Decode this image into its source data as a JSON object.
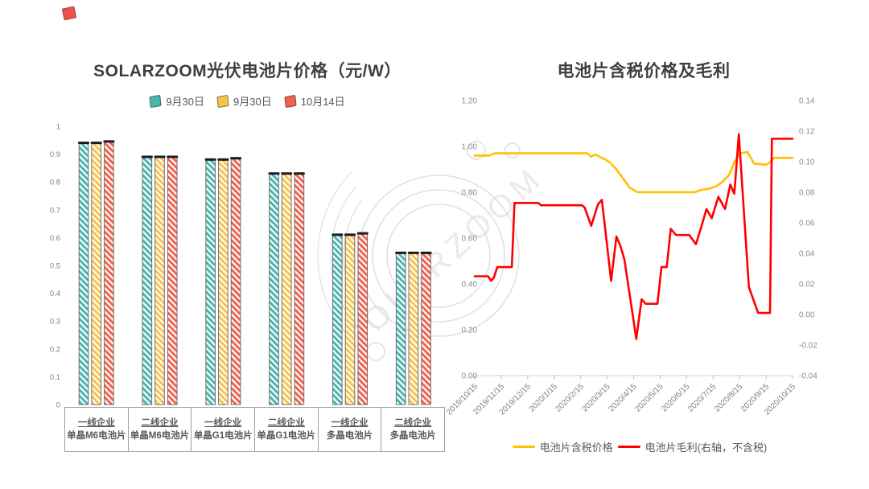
{
  "brand": {
    "accent_mark_color": "#e8534a"
  },
  "watermark": {
    "text": "SOLARZOOM",
    "color": "#d9d9d9"
  },
  "chart_data": [
    {
      "type": "bar",
      "title": "SOLARZOOM光伏电池片价格（元/W）",
      "ylim": [
        0,
        1
      ],
      "yticks": [
        "1",
        "0.9",
        "0.8",
        "0.7",
        "0.6",
        "0.5",
        "0.4",
        "0.3",
        "0.2",
        "0.1",
        "0"
      ],
      "grid": false,
      "legend_position": "top",
      "categories": [
        {
          "line1": "一线企业",
          "line2": "单晶M6电池片"
        },
        {
          "line1": "二线企业",
          "line2": "单晶M6电池片"
        },
        {
          "line1": "一线企业",
          "line2": "单晶G1电池片"
        },
        {
          "line1": "二线企业",
          "line2": "单晶G1电池片"
        },
        {
          "line1": "一线企业",
          "line2": "多晶电池片"
        },
        {
          "line1": "二线企业",
          "line2": "多晶电池片"
        }
      ],
      "series": [
        {
          "name": "9月30日",
          "color": "#4bb5ac",
          "values": [
            0.94,
            0.89,
            0.88,
            0.83,
            0.61,
            0.545
          ]
        },
        {
          "name": "9月30日",
          "color": "#f6c34c",
          "values": [
            0.94,
            0.89,
            0.88,
            0.83,
            0.61,
            0.545
          ]
        },
        {
          "name": "10月14日",
          "color": "#f0624f",
          "values": [
            0.945,
            0.89,
            0.885,
            0.83,
            0.615,
            0.545
          ]
        }
      ]
    },
    {
      "type": "line",
      "title": "电池片含税价格及毛利",
      "grid": false,
      "legend_position": "bottom",
      "x_tick_labels": [
        "2019/10/15",
        "2019/11/15",
        "2019/12/15",
        "2020/1/15",
        "2020/2/15",
        "2020/3/15",
        "2020/4/15",
        "2020/5/15",
        "2020/6/15",
        "2020/7/15",
        "2020/8/15",
        "2020/9/15",
        "2020/10/15"
      ],
      "x_range_months": [
        0,
        12
      ],
      "left_axis": {
        "min": 0.0,
        "max": 1.2,
        "ticks": [
          "1.20",
          "1.00",
          "0.80",
          "0.60",
          "0.40",
          "0.20",
          "0.00"
        ]
      },
      "right_axis": {
        "min": -0.04,
        "max": 0.14,
        "ticks": [
          "0.14",
          "0.12",
          "0.10",
          "0.08",
          "0.06",
          "0.04",
          "0.02",
          "0.00",
          "-0.02",
          "-0.04"
        ]
      },
      "series": [
        {
          "name": "电池片含税价格",
          "axis": "left",
          "color": "#ffc000",
          "points": [
            [
              0,
              0.96
            ],
            [
              0.55,
              0.96
            ],
            [
              0.75,
              0.97
            ],
            [
              4.25,
              0.97
            ],
            [
              4.4,
              0.955
            ],
            [
              4.55,
              0.965
            ],
            [
              4.7,
              0.955
            ],
            [
              4.9,
              0.945
            ],
            [
              5.1,
              0.93
            ],
            [
              5.35,
              0.9
            ],
            [
              5.6,
              0.86
            ],
            [
              5.85,
              0.82
            ],
            [
              6.15,
              0.8
            ],
            [
              8.3,
              0.8
            ],
            [
              8.55,
              0.81
            ],
            [
              8.85,
              0.815
            ],
            [
              9.1,
              0.825
            ],
            [
              9.35,
              0.845
            ],
            [
              9.6,
              0.875
            ],
            [
              9.8,
              0.93
            ],
            [
              10.0,
              0.97
            ],
            [
              10.3,
              0.975
            ],
            [
              10.55,
              0.925
            ],
            [
              11.0,
              0.92
            ],
            [
              11.15,
              0.93
            ],
            [
              11.3,
              0.95
            ],
            [
              12,
              0.95
            ]
          ]
        },
        {
          "name": "电池片毛利(右轴，不含税)",
          "axis": "right",
          "color": "#ff0000",
          "points": [
            [
              0,
              0.025
            ],
            [
              0.5,
              0.025
            ],
            [
              0.62,
              0.022
            ],
            [
              0.72,
              0.024
            ],
            [
              0.85,
              0.031
            ],
            [
              1.4,
              0.031
            ],
            [
              1.5,
              0.073
            ],
            [
              2.4,
              0.073
            ],
            [
              2.5,
              0.0715
            ],
            [
              4.05,
              0.0715
            ],
            [
              4.15,
              0.07
            ],
            [
              4.4,
              0.058
            ],
            [
              4.65,
              0.072
            ],
            [
              4.8,
              0.075
            ],
            [
              5.15,
              0.022
            ],
            [
              5.35,
              0.051
            ],
            [
              5.5,
              0.045
            ],
            [
              5.65,
              0.036
            ],
            [
              6.1,
              -0.016
            ],
            [
              6.3,
              0.01
            ],
            [
              6.45,
              0.007
            ],
            [
              6.9,
              0.007
            ],
            [
              7.05,
              0.031
            ],
            [
              7.25,
              0.031
            ],
            [
              7.4,
              0.056
            ],
            [
              7.6,
              0.052
            ],
            [
              8.1,
              0.052
            ],
            [
              8.35,
              0.046
            ],
            [
              8.55,
              0.057
            ],
            [
              8.75,
              0.069
            ],
            [
              8.95,
              0.063
            ],
            [
              9.2,
              0.077
            ],
            [
              9.45,
              0.069
            ],
            [
              9.65,
              0.085
            ],
            [
              9.8,
              0.079
            ],
            [
              9.97,
              0.118
            ],
            [
              10.35,
              0.018
            ],
            [
              10.7,
              0.001
            ],
            [
              11.15,
              0.001
            ],
            [
              11.22,
              0.115
            ],
            [
              12,
              0.115
            ]
          ]
        }
      ]
    }
  ]
}
